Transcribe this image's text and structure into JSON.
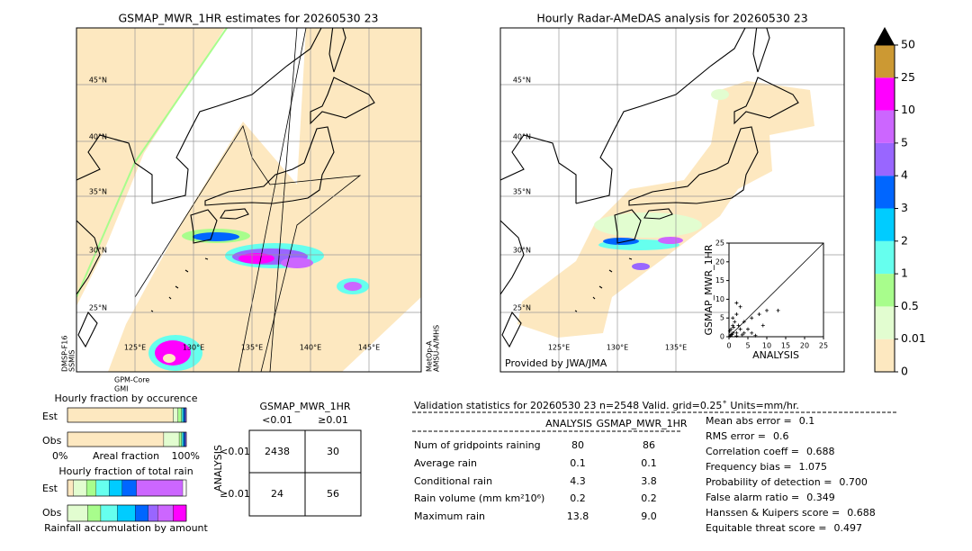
{
  "gsmap_map": {
    "title": "GSMAP_MWR_1HR estimates for 20260530 23",
    "lat_labels": [
      "45°N",
      "40°N",
      "35°N",
      "30°N",
      "25°N"
    ],
    "lon_labels": [
      "125°E",
      "130°E",
      "135°E",
      "140°E",
      "145°E"
    ],
    "sensors": [
      [
        "DMSP-F16",
        "SSMIS"
      ],
      [
        "GPM-Core",
        "GMI"
      ],
      [
        "MetOp-A",
        "AMSU-A/MHS"
      ]
    ]
  },
  "radar_map": {
    "title": "Hourly Radar-AMeDAS analysis for 20260530 23",
    "lat_labels": [
      "45°N",
      "40°N",
      "35°N",
      "30°N",
      "25°N"
    ],
    "lon_labels": [
      "125°E",
      "130°E",
      "135°E"
    ],
    "credit": "Provided by JWA/JMA"
  },
  "scatter": {
    "type": "scatter",
    "xlabel": "ANALYSIS",
    "ylabel": "GSMAP_MWR_1HR",
    "xlim": [
      0,
      25
    ],
    "ylim": [
      0,
      25
    ],
    "xticks": [
      0,
      5,
      10,
      15,
      20,
      25
    ],
    "yticks": [
      0,
      5,
      10,
      15,
      20,
      25
    ],
    "x": [
      8,
      10,
      13,
      9,
      6,
      4,
      3,
      2,
      2,
      1,
      1,
      0.5,
      3,
      5,
      2,
      1,
      0.5,
      4,
      6,
      1.5,
      2.5,
      0.3,
      0.8,
      3.5,
      1.2,
      7,
      2,
      0.2
    ],
    "y": [
      6,
      7,
      7,
      3,
      5,
      4,
      8,
      9,
      6,
      5,
      3,
      2,
      2,
      2,
      1,
      1,
      0.5,
      1,
      1,
      4,
      3,
      0.2,
      0.6,
      0.5,
      2.5,
      0.3,
      0.2,
      1.5
    ]
  },
  "colorbar": {
    "ticks": [
      0,
      0.01,
      0.5,
      1,
      2,
      3,
      4,
      5,
      10,
      25,
      50
    ],
    "colors": [
      "#fde8c0",
      "#e2fdd0",
      "#a8fd8c",
      "#66ffee",
      "#00ccff",
      "#0066ff",
      "#9966ff",
      "#cc66ff",
      "#ff00ff",
      "#cc9933"
    ],
    "extend_color": "#000000"
  },
  "occurrence": {
    "title": "Hourly fraction by occurence",
    "rows": [
      "Est",
      "Obs"
    ],
    "xmin_label": "0%",
    "xlabel": "Areal fraction",
    "xmax_label": "100%",
    "segments": [
      [
        89,
        4,
        3,
        1,
        1,
        1,
        1
      ],
      [
        81,
        13,
        2,
        1,
        1,
        1,
        1
      ]
    ]
  },
  "total_rain": {
    "title": "Hourly fraction of total rain",
    "rows": [
      "Est",
      "Obs"
    ],
    "xlabel": "Rainfall accumulation by amount",
    "segments": [
      [
        5,
        11,
        8,
        11,
        11,
        12,
        39
      ],
      [
        17,
        11,
        14,
        15,
        11,
        8,
        13,
        11
      ]
    ],
    "segment_colors": [
      [
        "#fde8c0",
        "#e2fdd0",
        "#a8fd8c",
        "#66ffee",
        "#00ccff",
        "#0066ff",
        "#cc66ff"
      ],
      [
        "#e2fdd0",
        "#a8fd8c",
        "#66ffee",
        "#00ccff",
        "#0066ff",
        "#9966ff",
        "#cc66ff",
        "#ff00ff"
      ]
    ]
  },
  "contingency": {
    "title": "GSMAP_MWR_1HR",
    "col_headers": [
      "<0.01",
      "≥0.01"
    ],
    "row_label": "ANALYSIS",
    "row_headers": [
      "<0.01",
      "≥0.01"
    ],
    "cells": [
      [
        2438,
        30
      ],
      [
        24,
        56
      ]
    ]
  },
  "validation": {
    "header": "Validation statistics for 20260530 23  n=2548 Valid. grid=0.25˚ Units=mm/hr.",
    "columns": [
      "ANALYSIS",
      "GSMAP_MWR_1HR"
    ],
    "rows": [
      {
        "label": "Num of gridpoints raining",
        "values": [
          80,
          86
        ]
      },
      {
        "label": "Average rain",
        "values": [
          0.1,
          0.1
        ]
      },
      {
        "label": "Conditional rain",
        "values": [
          4.3,
          3.8
        ]
      },
      {
        "label": "Rain volume (mm km²10⁶)",
        "values": [
          0.2,
          0.2
        ]
      },
      {
        "label": "Maximum rain",
        "values": [
          13.8,
          "9.0"
        ]
      }
    ],
    "scores": [
      {
        "label": "Mean abs error =",
        "value": 0.1
      },
      {
        "label": "RMS error =",
        "value": 0.6
      },
      {
        "label": "Correlation coeff =",
        "value": 0.688
      },
      {
        "label": "Frequency bias =",
        "value": 1.075
      },
      {
        "label": "Probability of detection =",
        "value": "0.700"
      },
      {
        "label": "False alarm ratio =",
        "value": 0.349
      },
      {
        "label": "Hanssen & Kuipers score =",
        "value": 0.688
      },
      {
        "label": "Equitable threat score =",
        "value": 0.497
      }
    ]
  }
}
